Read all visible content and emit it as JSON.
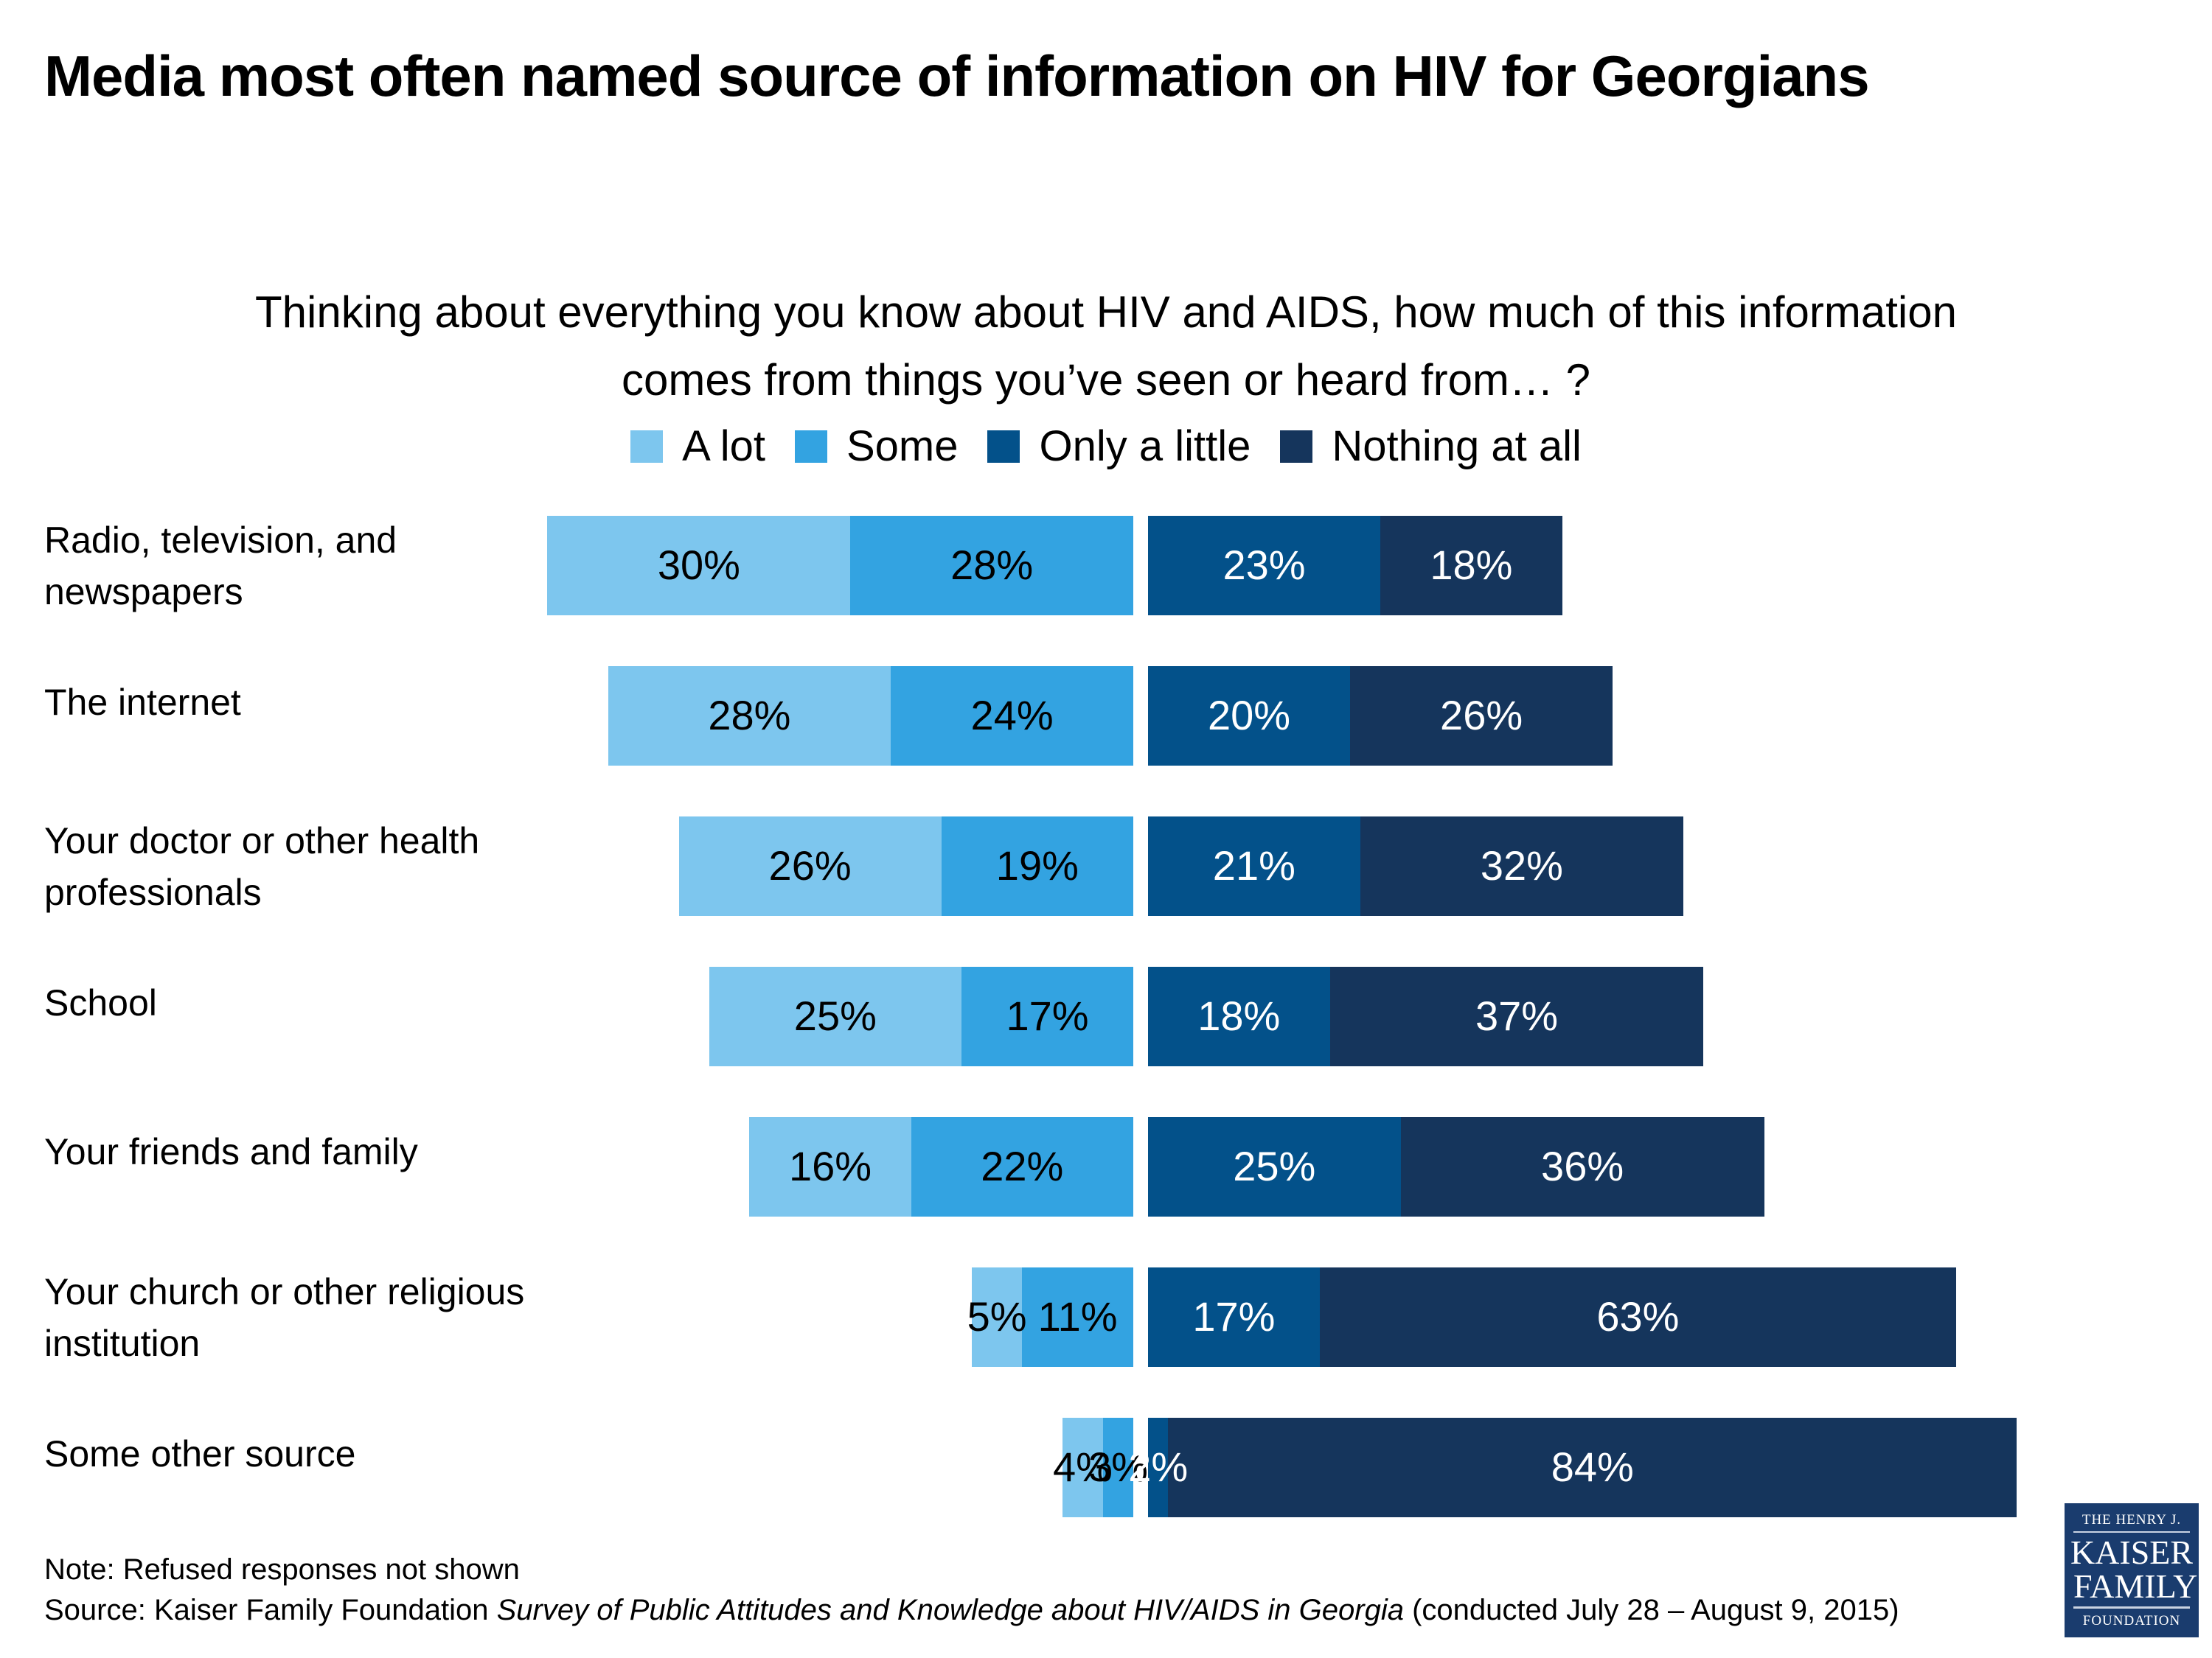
{
  "title": "Media most often named source of information on HIV for Georgians",
  "subtitle_line1": "Thinking about everything you know about HIV and AIDS, how much of this information",
  "subtitle_line2": "comes from things you’ve seen or heard from… ?",
  "note": "Note: Refused responses not shown",
  "source": {
    "prefix": "Source: Kaiser Family Foundation ",
    "italic": "Survey of Public Attitudes and Knowledge about HIV/AIDS in Georgia",
    "suffix": " (conducted July 28 – August 9, 2015)"
  },
  "logo": {
    "line1": "THE HENRY J.",
    "line2": "KAISER",
    "line3": "FAMILY",
    "line4": "FOUNDATION"
  },
  "chart_data": {
    "type": "bar",
    "orientation": "horizontal-diverging-stacked",
    "title": "Media most often named source of information on HIV for Georgians",
    "subtitle": "Thinking about everything you know about HIV and AIDS, how much of this information comes from things you’ve seen or heard from… ?",
    "legend_position": "top-center",
    "categories": [
      "Radio, television, and newspapers",
      "The internet",
      "Your doctor or other health professionals",
      "School",
      "Your friends and family",
      "Your church or other religious institution",
      "Some other source"
    ],
    "series": [
      {
        "name": "A lot",
        "color": "#7dc6ee",
        "side": "left",
        "text_color": "#000000",
        "values": [
          30,
          28,
          26,
          25,
          16,
          5,
          4
        ]
      },
      {
        "name": "Some",
        "color": "#33a3e1",
        "side": "left",
        "text_color": "#000000",
        "values": [
          28,
          24,
          19,
          17,
          22,
          11,
          3
        ]
      },
      {
        "name": "Only a little",
        "color": "#03518a",
        "side": "right",
        "text_color": "#ffffff",
        "values": [
          23,
          20,
          21,
          18,
          25,
          17,
          2
        ]
      },
      {
        "name": "Nothing at all",
        "color": "#15355c",
        "side": "right",
        "text_color": "#ffffff",
        "values": [
          18,
          26,
          32,
          37,
          36,
          63,
          84
        ]
      }
    ],
    "value_suffix": "%",
    "grid": false
  }
}
